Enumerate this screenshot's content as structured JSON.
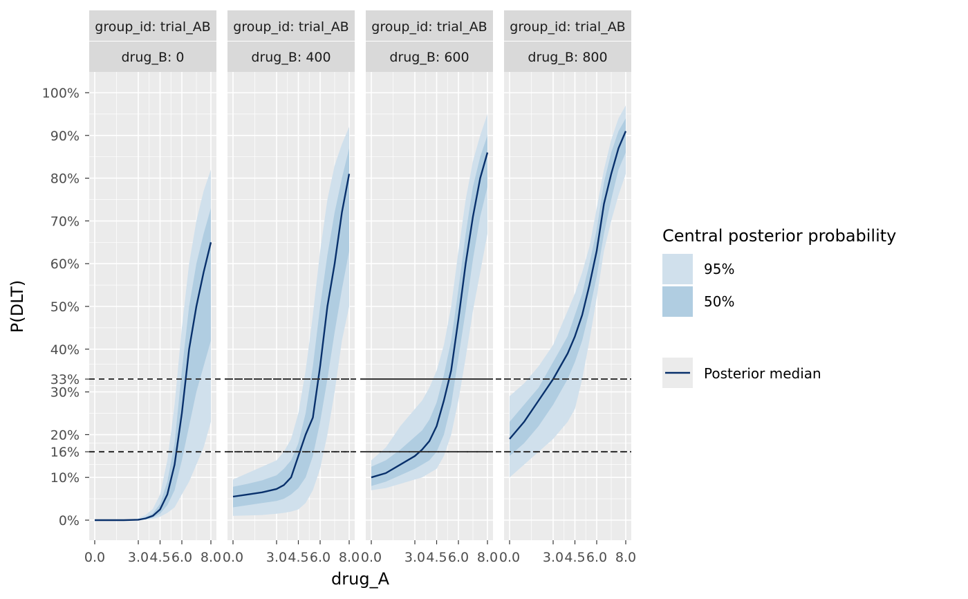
{
  "chart_data": {
    "type": "line",
    "xlabel": "drug_A",
    "ylabel": "P(DLT)",
    "xlim": [
      0,
      8
    ],
    "ylim": [
      0,
      1
    ],
    "x_ticks": [
      0,
      3,
      4.5,
      6,
      8
    ],
    "x_tick_labels": [
      "0.0",
      "3.0",
      "4.5",
      "6.0",
      "8.0"
    ],
    "y_ticks": [
      0,
      0.1,
      0.16,
      0.2,
      0.3,
      0.33,
      0.4,
      0.5,
      0.6,
      0.7,
      0.8,
      0.9,
      1.0
    ],
    "y_tick_labels": [
      "0%",
      "10%",
      "16%",
      "20%",
      "30%",
      "33%",
      "40%",
      "50%",
      "60%",
      "70%",
      "80%",
      "90%",
      "100%"
    ],
    "reference_lines": [
      0.16,
      0.33
    ],
    "grid": true,
    "legend": {
      "title": "Central posterior probability",
      "ribbons": [
        {
          "label": "95%",
          "color": "#d0e0ec"
        },
        {
          "label": "50%",
          "color": "#b0cde1"
        }
      ],
      "line_label": "Posterior median",
      "line_color": "#08306b",
      "position": "right"
    },
    "panels": [
      {
        "strip_top": "group_id: trial_AB",
        "strip_bottom": "drug_B: 0",
        "x": [
          0,
          1,
          2,
          3,
          3.5,
          4,
          4.5,
          5,
          5.5,
          6,
          6.5,
          7,
          7.5,
          8
        ],
        "median": [
          0.0,
          0.0,
          0.0,
          0.001,
          0.004,
          0.01,
          0.025,
          0.06,
          0.13,
          0.25,
          0.4,
          0.5,
          0.58,
          0.65
        ],
        "lower50": [
          0.0,
          0.0,
          0.0,
          0.0,
          0.002,
          0.006,
          0.015,
          0.035,
          0.07,
          0.14,
          0.22,
          0.3,
          0.36,
          0.42
        ],
        "upper50": [
          0.0,
          0.0,
          0.0,
          0.002,
          0.007,
          0.016,
          0.038,
          0.09,
          0.18,
          0.35,
          0.5,
          0.6,
          0.67,
          0.73
        ],
        "lower95": [
          0.0,
          0.0,
          0.0,
          0.0,
          0.001,
          0.003,
          0.008,
          0.017,
          0.03,
          0.06,
          0.09,
          0.13,
          0.17,
          0.23
        ],
        "upper95": [
          0.0,
          0.0,
          0.0,
          0.004,
          0.012,
          0.026,
          0.06,
          0.14,
          0.27,
          0.45,
          0.6,
          0.7,
          0.77,
          0.82
        ]
      },
      {
        "strip_top": "group_id: trial_AB",
        "strip_bottom": "drug_B: 400",
        "x": [
          0,
          1,
          2,
          3,
          3.5,
          4,
          4.5,
          5,
          5.5,
          6,
          6.5,
          7,
          7.5,
          8
        ],
        "median": [
          0.055,
          0.06,
          0.065,
          0.073,
          0.082,
          0.1,
          0.15,
          0.2,
          0.24,
          0.36,
          0.5,
          0.6,
          0.72,
          0.81
        ],
        "lower50": [
          0.03,
          0.035,
          0.04,
          0.045,
          0.05,
          0.06,
          0.075,
          0.1,
          0.15,
          0.23,
          0.33,
          0.44,
          0.54,
          0.63
        ],
        "upper50": [
          0.078,
          0.085,
          0.093,
          0.105,
          0.12,
          0.14,
          0.18,
          0.25,
          0.36,
          0.5,
          0.62,
          0.72,
          0.8,
          0.87
        ],
        "lower95": [
          0.01,
          0.011,
          0.012,
          0.015,
          0.017,
          0.02,
          0.025,
          0.04,
          0.07,
          0.12,
          0.2,
          0.3,
          0.42,
          0.5
        ],
        "upper95": [
          0.095,
          0.11,
          0.125,
          0.14,
          0.16,
          0.19,
          0.25,
          0.35,
          0.48,
          0.63,
          0.75,
          0.83,
          0.88,
          0.92
        ]
      },
      {
        "strip_top": "group_id: trial_AB",
        "strip_bottom": "drug_B: 600",
        "x": [
          0,
          1,
          2,
          3,
          3.5,
          4,
          4.5,
          5,
          5.5,
          6,
          6.5,
          7,
          7.5,
          8
        ],
        "median": [
          0.1,
          0.11,
          0.13,
          0.15,
          0.165,
          0.185,
          0.22,
          0.28,
          0.35,
          0.47,
          0.6,
          0.71,
          0.8,
          0.86
        ],
        "lower50": [
          0.08,
          0.09,
          0.105,
          0.12,
          0.13,
          0.14,
          0.16,
          0.2,
          0.27,
          0.38,
          0.49,
          0.61,
          0.71,
          0.78
        ],
        "upper50": [
          0.125,
          0.14,
          0.165,
          0.195,
          0.21,
          0.235,
          0.275,
          0.34,
          0.42,
          0.54,
          0.67,
          0.78,
          0.85,
          0.9
        ],
        "lower95": [
          0.07,
          0.075,
          0.085,
          0.095,
          0.1,
          0.11,
          0.12,
          0.15,
          0.2,
          0.28,
          0.38,
          0.49,
          0.58,
          0.67
        ],
        "upper95": [
          0.14,
          0.17,
          0.22,
          0.26,
          0.28,
          0.31,
          0.35,
          0.41,
          0.5,
          0.63,
          0.75,
          0.84,
          0.9,
          0.95
        ]
      },
      {
        "strip_top": "group_id: trial_AB",
        "strip_bottom": "drug_B: 800",
        "x": [
          0,
          1,
          2,
          3,
          3.5,
          4,
          4.5,
          5,
          5.5,
          6,
          6.5,
          7,
          7.5,
          8
        ],
        "median": [
          0.19,
          0.23,
          0.28,
          0.33,
          0.36,
          0.39,
          0.43,
          0.48,
          0.55,
          0.63,
          0.74,
          0.81,
          0.87,
          0.91
        ],
        "lower50": [
          0.15,
          0.18,
          0.22,
          0.27,
          0.3,
          0.33,
          0.37,
          0.42,
          0.49,
          0.57,
          0.67,
          0.75,
          0.82,
          0.86
        ],
        "upper50": [
          0.23,
          0.27,
          0.31,
          0.37,
          0.4,
          0.43,
          0.48,
          0.53,
          0.6,
          0.68,
          0.79,
          0.86,
          0.91,
          0.94
        ],
        "lower95": [
          0.1,
          0.13,
          0.16,
          0.19,
          0.21,
          0.23,
          0.26,
          0.33,
          0.42,
          0.52,
          0.63,
          0.7,
          0.76,
          0.81
        ],
        "upper95": [
          0.29,
          0.32,
          0.36,
          0.41,
          0.45,
          0.49,
          0.53,
          0.58,
          0.64,
          0.73,
          0.82,
          0.89,
          0.94,
          0.97
        ]
      }
    ]
  }
}
